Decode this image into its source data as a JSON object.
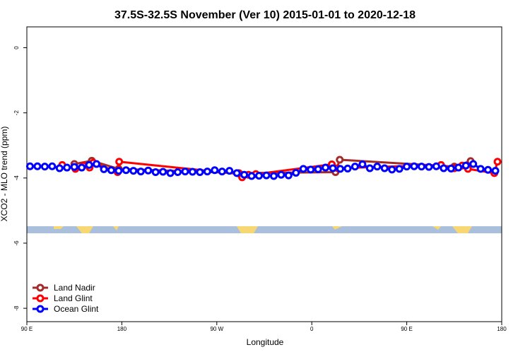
{
  "chart_data": {
    "type": "line",
    "title": "37.5S-32.5S November (Ver 10)   2015-01-01 to 2020-12-18",
    "x_label": "Longitude",
    "y_label": "XCO2 - MLO trend (ppm)",
    "xlim": [
      90,
      540
    ],
    "ylim": [
      -8.41,
      0.64
    ],
    "xticks": [
      {
        "value": 90,
        "label": "90 E"
      },
      180,
      {
        "value": 270,
        "label": "90 W"
      },
      {
        "value": 360,
        "label": "0"
      },
      {
        "value": 450,
        "label": "90 E"
      },
      {
        "value": 540,
        "label": "180"
      }
    ],
    "yticks": [
      0,
      -2,
      -4,
      -6,
      -8
    ],
    "legend": "bottom-left",
    "series": [
      {
        "name": "Land Nadir",
        "color": "#a52a2a",
        "x": [
          135,
          151.5,
          177,
          291,
          382.5,
          386.5,
          495,
          510.5
        ],
        "values": [
          -3.57,
          -3.47,
          -3.72,
          -3.85,
          -3.82,
          -3.44,
          -3.65,
          -3.48
        ]
      },
      {
        "name": "Land Glint",
        "color": "#ff0000",
        "x": [
          123.5,
          136,
          143.5,
          149.5,
          153,
          176,
          177.5,
          292,
          294,
          300,
          307,
          379,
          384.5,
          482.5,
          495,
          502.5,
          508,
          533,
          536
        ],
        "values": [
          -3.6,
          -3.72,
          -3.62,
          -3.68,
          -3.53,
          -3.82,
          -3.5,
          -3.88,
          -3.98,
          -3.9,
          -3.88,
          -3.58,
          -3.7,
          -3.6,
          -3.7,
          -3.62,
          -3.72,
          -3.85,
          -3.5
        ]
      },
      {
        "name": "Ocean Glint",
        "color": "#0000ff",
        "x": [
          93,
          100,
          107,
          114,
          121,
          128,
          135,
          142,
          149,
          156,
          163,
          170,
          177,
          184,
          191,
          198,
          205,
          212,
          219,
          226,
          233,
          240,
          247,
          254,
          261,
          268,
          275,
          282,
          289,
          296,
          303,
          310,
          317,
          324,
          331,
          338,
          345,
          352,
          359,
          366,
          373,
          380,
          387,
          394,
          401,
          408,
          415,
          422,
          429,
          436,
          443,
          450,
          457,
          464,
          471,
          478,
          485,
          492,
          499,
          506,
          513,
          520,
          527,
          534
        ],
        "values": [
          -3.64,
          -3.64,
          -3.65,
          -3.64,
          -3.7,
          -3.68,
          -3.66,
          -3.68,
          -3.6,
          -3.57,
          -3.73,
          -3.76,
          -3.78,
          -3.76,
          -3.78,
          -3.8,
          -3.77,
          -3.82,
          -3.81,
          -3.85,
          -3.82,
          -3.8,
          -3.81,
          -3.82,
          -3.8,
          -3.76,
          -3.8,
          -3.78,
          -3.85,
          -3.9,
          -3.94,
          -3.93,
          -3.92,
          -3.94,
          -3.9,
          -3.92,
          -3.84,
          -3.72,
          -3.74,
          -3.73,
          -3.68,
          -3.7,
          -3.72,
          -3.71,
          -3.65,
          -3.58,
          -3.7,
          -3.65,
          -3.7,
          -3.74,
          -3.72,
          -3.65,
          -3.64,
          -3.65,
          -3.66,
          -3.64,
          -3.7,
          -3.71,
          -3.68,
          -3.62,
          -3.57,
          -3.72,
          -3.75,
          -3.78
        ]
      }
    ]
  }
}
